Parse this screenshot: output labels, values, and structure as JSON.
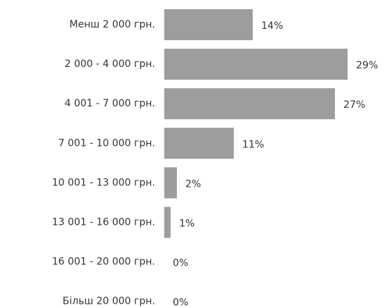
{
  "chart_data": {
    "type": "bar",
    "orientation": "horizontal",
    "categories": [
      "Менш 2 000 грн.",
      "2 000 - 4 000 грн.",
      "4 001 - 7 000 грн.",
      "7 001 - 10 000 грн.",
      "10 001 - 13 000 грн.",
      "13 001 - 16 000 грн.",
      "16 001 - 20 000 грн.",
      "Більш 20 000 грн."
    ],
    "values": [
      14,
      29,
      27,
      11,
      2,
      1,
      0,
      0
    ],
    "value_labels": [
      "14%",
      "29%",
      "27%",
      "11%",
      "2%",
      "1%",
      "0%",
      "0%"
    ],
    "color": "#9d9d9d"
  }
}
